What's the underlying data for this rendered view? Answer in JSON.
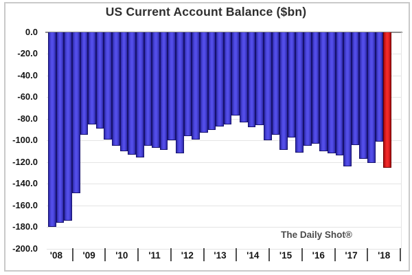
{
  "title": "US Current Account Balance ($bn)",
  "source_label": "The Daily Shot®",
  "chart_data": {
    "type": "bar",
    "title": "US Current Account Balance ($bn)",
    "unit": "$bn",
    "ylim": [
      0,
      -200
    ],
    "ytick_step": 20,
    "ytick_labels": [
      "0.0",
      "-20.0",
      "-40.0",
      "-60.0",
      "-80.0",
      "-100.0",
      "-120.0",
      "-140.0",
      "-160.0",
      "-180.0",
      "-200.0"
    ],
    "categories_years": [
      "'08",
      "'09",
      "'10",
      "'11",
      "'12",
      "'13",
      "'14",
      "'15",
      "'16",
      "'17",
      "'18"
    ],
    "bars_per_year_note": "quarterly bars, 2008Q1 through 2018Q3, last bar highlighted red",
    "series": [
      {
        "name": "US Current Account Balance, quarterly ($bn)",
        "values": [
          -180,
          -176,
          -174,
          -149,
          -95,
          -85,
          -89,
          -99,
          -105,
          -110,
          -113,
          -116,
          -105,
          -107,
          -109,
          -100,
          -112,
          -96,
          -99,
          -93,
          -90,
          -87,
          -85,
          -77,
          -83,
          -88,
          -86,
          -100,
          -95,
          -109,
          -97,
          -111,
          -105,
          -103,
          -110,
          -112,
          -114,
          -124,
          -104,
          -117,
          -121,
          -101,
          -125
        ]
      }
    ],
    "highlight_last_bar": true,
    "bar_color": "#3f39e6",
    "highlight_color": "#ee1111",
    "grid": "horizontal",
    "legend": "none",
    "annotation": "The Daily Shot®"
  }
}
